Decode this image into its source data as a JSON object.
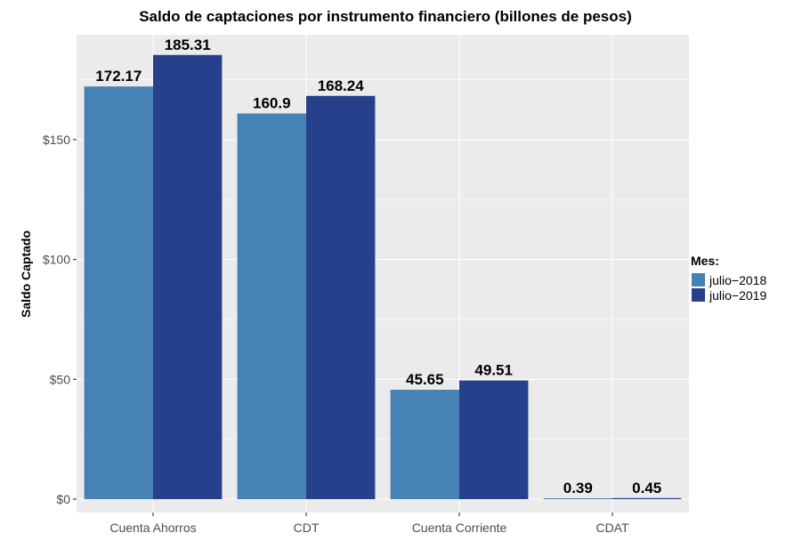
{
  "chart_data": {
    "type": "bar",
    "title": "Saldo de captaciones por instrumento financiero (billones de pesos)",
    "xlabel": "",
    "ylabel": "Saldo Captado",
    "categories": [
      "Cuenta Ahorros",
      "CDT",
      "Cuenta Corriente",
      "CDAT"
    ],
    "series": [
      {
        "name": "julio−2018",
        "values": [
          172.17,
          160.9,
          45.65,
          0.39
        ],
        "labels": [
          "172.17",
          "160.9",
          "45.65",
          "0.39"
        ],
        "color": "#4682b4"
      },
      {
        "name": "julio−2019",
        "values": [
          185.31,
          168.24,
          49.51,
          0.45
        ],
        "labels": [
          "185.31",
          "168.24",
          "49.51",
          "0.45"
        ],
        "color": "#26408b"
      }
    ],
    "ylim": [
      0,
      194.58
    ],
    "yticks": [
      0,
      50,
      100,
      150
    ],
    "ytick_labels": [
      "$0",
      "$50",
      "$100",
      "$150"
    ],
    "legend": {
      "title": "Mes:",
      "position": "right"
    },
    "grid": true,
    "panel_background": "#ebebeb",
    "gridline_color": "#ffffff"
  }
}
